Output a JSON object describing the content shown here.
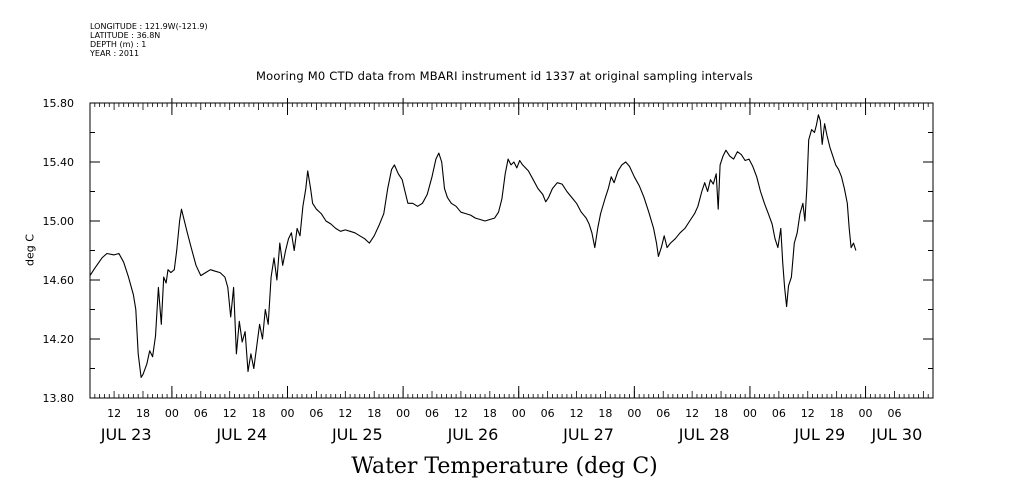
{
  "header": {
    "longitude": "LONGITUDE : 121.9W(-121.9)",
    "latitude": "LATITUDE : 36.8N",
    "depth": "DEPTH (m) : 1",
    "year": "YEAR : 2011"
  },
  "chart_data": {
    "type": "line",
    "title": "Mooring M0 CTD data from MBARI instrument id 1337 at original sampling intervals",
    "xlabel": "Water Temperature (deg C)",
    "ylabel": "deg C",
    "ylim": [
      13.8,
      15.8
    ],
    "yticks": [
      "13.80",
      "14.20",
      "14.60",
      "15.00",
      "15.40",
      "15.80"
    ],
    "xrange_hours": [
      7,
      182
    ],
    "hour_ticks": [
      {
        "h": 12,
        "label": "12"
      },
      {
        "h": 18,
        "label": "18"
      },
      {
        "h": 24,
        "label": "00"
      },
      {
        "h": 30,
        "label": "06"
      },
      {
        "h": 36,
        "label": "12"
      },
      {
        "h": 42,
        "label": "18"
      },
      {
        "h": 48,
        "label": "00"
      },
      {
        "h": 54,
        "label": "06"
      },
      {
        "h": 60,
        "label": "12"
      },
      {
        "h": 66,
        "label": "18"
      },
      {
        "h": 72,
        "label": "00"
      },
      {
        "h": 78,
        "label": "06"
      },
      {
        "h": 84,
        "label": "12"
      },
      {
        "h": 90,
        "label": "18"
      },
      {
        "h": 96,
        "label": "00"
      },
      {
        "h": 102,
        "label": "06"
      },
      {
        "h": 108,
        "label": "12"
      },
      {
        "h": 114,
        "label": "18"
      },
      {
        "h": 120,
        "label": "00"
      },
      {
        "h": 126,
        "label": "06"
      },
      {
        "h": 132,
        "label": "12"
      },
      {
        "h": 138,
        "label": "18"
      },
      {
        "h": 144,
        "label": "00"
      },
      {
        "h": 150,
        "label": "06"
      },
      {
        "h": 156,
        "label": "12"
      },
      {
        "h": 162,
        "label": "18"
      },
      {
        "h": 168,
        "label": "00"
      },
      {
        "h": 174,
        "label": "06"
      }
    ],
    "day_labels": [
      {
        "h": 14.5,
        "label": "JUL 23"
      },
      {
        "h": 38.5,
        "label": "JUL 24"
      },
      {
        "h": 62.5,
        "label": "JUL 25"
      },
      {
        "h": 86.5,
        "label": "JUL 26"
      },
      {
        "h": 110.5,
        "label": "JUL 27"
      },
      {
        "h": 134.5,
        "label": "JUL 28"
      },
      {
        "h": 158.5,
        "label": "JUL 29"
      },
      {
        "h": 174.5,
        "label": "JUL 30"
      }
    ],
    "series": [
      {
        "color": "#000000",
        "points": [
          [
            7.0,
            14.63
          ],
          [
            8.0,
            14.68
          ],
          [
            9.5,
            14.75
          ],
          [
            10.5,
            14.78
          ],
          [
            12.0,
            14.77
          ],
          [
            13.0,
            14.78
          ],
          [
            14.0,
            14.72
          ],
          [
            15.0,
            14.62
          ],
          [
            16.0,
            14.5
          ],
          [
            16.5,
            14.4
          ],
          [
            17.0,
            14.1
          ],
          [
            17.6,
            13.94
          ],
          [
            18.0,
            13.96
          ],
          [
            18.8,
            14.03
          ],
          [
            19.4,
            14.12
          ],
          [
            20.0,
            14.08
          ],
          [
            20.6,
            14.22
          ],
          [
            21.2,
            14.55
          ],
          [
            21.8,
            14.3
          ],
          [
            22.3,
            14.62
          ],
          [
            22.8,
            14.58
          ],
          [
            23.2,
            14.67
          ],
          [
            23.8,
            14.65
          ],
          [
            24.5,
            14.67
          ],
          [
            25.0,
            14.8
          ],
          [
            25.6,
            15.0
          ],
          [
            26.0,
            15.08
          ],
          [
            26.6,
            15.0
          ],
          [
            27.2,
            14.92
          ],
          [
            28.0,
            14.82
          ],
          [
            29.0,
            14.7
          ],
          [
            30.0,
            14.63
          ],
          [
            31.0,
            14.65
          ],
          [
            32.0,
            14.67
          ],
          [
            33.0,
            14.66
          ],
          [
            34.0,
            14.65
          ],
          [
            35.0,
            14.62
          ],
          [
            35.6,
            14.55
          ],
          [
            36.2,
            14.35
          ],
          [
            36.8,
            14.55
          ],
          [
            37.4,
            14.1
          ],
          [
            38.0,
            14.32
          ],
          [
            38.6,
            14.18
          ],
          [
            39.2,
            14.25
          ],
          [
            39.8,
            13.98
          ],
          [
            40.4,
            14.1
          ],
          [
            41.0,
            14.0
          ],
          [
            41.6,
            14.15
          ],
          [
            42.2,
            14.3
          ],
          [
            42.8,
            14.2
          ],
          [
            43.4,
            14.4
          ],
          [
            44.0,
            14.3
          ],
          [
            44.6,
            14.62
          ],
          [
            45.2,
            14.75
          ],
          [
            45.8,
            14.6
          ],
          [
            46.4,
            14.85
          ],
          [
            47.0,
            14.7
          ],
          [
            47.6,
            14.8
          ],
          [
            48.2,
            14.88
          ],
          [
            48.8,
            14.92
          ],
          [
            49.4,
            14.8
          ],
          [
            50.0,
            14.95
          ],
          [
            50.6,
            14.9
          ],
          [
            51.2,
            15.1
          ],
          [
            51.8,
            15.22
          ],
          [
            52.2,
            15.34
          ],
          [
            52.8,
            15.22
          ],
          [
            53.2,
            15.12
          ],
          [
            54.0,
            15.08
          ],
          [
            55.0,
            15.05
          ],
          [
            56.0,
            15.0
          ],
          [
            57.0,
            14.98
          ],
          [
            58.0,
            14.95
          ],
          [
            59.0,
            14.93
          ],
          [
            60.0,
            14.94
          ],
          [
            61.0,
            14.93
          ],
          [
            62.0,
            14.92
          ],
          [
            63.0,
            14.9
          ],
          [
            64.0,
            14.88
          ],
          [
            65.0,
            14.85
          ],
          [
            66.0,
            14.9
          ],
          [
            67.0,
            14.97
          ],
          [
            68.0,
            15.05
          ],
          [
            68.8,
            15.22
          ],
          [
            69.6,
            15.35
          ],
          [
            70.2,
            15.38
          ],
          [
            71.0,
            15.32
          ],
          [
            71.8,
            15.28
          ],
          [
            72.4,
            15.2
          ],
          [
            73.0,
            15.12
          ],
          [
            74.0,
            15.12
          ],
          [
            75.0,
            15.1
          ],
          [
            76.0,
            15.12
          ],
          [
            77.0,
            15.18
          ],
          [
            78.0,
            15.3
          ],
          [
            78.8,
            15.42
          ],
          [
            79.4,
            15.46
          ],
          [
            80.0,
            15.4
          ],
          [
            80.6,
            15.22
          ],
          [
            81.2,
            15.16
          ],
          [
            82.0,
            15.12
          ],
          [
            83.0,
            15.1
          ],
          [
            84.0,
            15.06
          ],
          [
            85.0,
            15.05
          ],
          [
            86.0,
            15.04
          ],
          [
            87.0,
            15.02
          ],
          [
            88.0,
            15.01
          ],
          [
            89.0,
            15.0
          ],
          [
            90.0,
            15.01
          ],
          [
            91.0,
            15.02
          ],
          [
            91.8,
            15.06
          ],
          [
            92.5,
            15.15
          ],
          [
            93.2,
            15.32
          ],
          [
            93.8,
            15.42
          ],
          [
            94.4,
            15.38
          ],
          [
            95.0,
            15.4
          ],
          [
            95.6,
            15.36
          ],
          [
            96.2,
            15.41
          ],
          [
            96.8,
            15.38
          ],
          [
            97.4,
            15.36
          ],
          [
            98.0,
            15.34
          ],
          [
            99.0,
            15.28
          ],
          [
            100.0,
            15.22
          ],
          [
            101.0,
            15.18
          ],
          [
            101.6,
            15.13
          ],
          [
            102.2,
            15.16
          ],
          [
            103.0,
            15.22
          ],
          [
            104.0,
            15.26
          ],
          [
            105.0,
            15.25
          ],
          [
            106.0,
            15.2
          ],
          [
            107.0,
            15.16
          ],
          [
            108.0,
            15.12
          ],
          [
            109.0,
            15.06
          ],
          [
            110.0,
            15.02
          ],
          [
            110.6,
            14.98
          ],
          [
            111.2,
            14.92
          ],
          [
            111.8,
            14.82
          ],
          [
            112.4,
            14.95
          ],
          [
            113.0,
            15.05
          ],
          [
            114.0,
            15.16
          ],
          [
            114.6,
            15.22
          ],
          [
            115.2,
            15.3
          ],
          [
            115.8,
            15.26
          ],
          [
            116.6,
            15.34
          ],
          [
            117.4,
            15.38
          ],
          [
            118.2,
            15.4
          ],
          [
            119.0,
            15.37
          ],
          [
            120.0,
            15.3
          ],
          [
            121.0,
            15.24
          ],
          [
            122.0,
            15.16
          ],
          [
            123.0,
            15.06
          ],
          [
            124.0,
            14.95
          ],
          [
            124.6,
            14.85
          ],
          [
            125.0,
            14.76
          ],
          [
            125.6,
            14.82
          ],
          [
            126.2,
            14.9
          ],
          [
            126.8,
            14.82
          ],
          [
            127.5,
            14.85
          ],
          [
            128.5,
            14.88
          ],
          [
            129.5,
            14.92
          ],
          [
            130.5,
            14.95
          ],
          [
            131.5,
            15.0
          ],
          [
            132.5,
            15.05
          ],
          [
            133.2,
            15.1
          ],
          [
            134.0,
            15.2
          ],
          [
            134.6,
            15.26
          ],
          [
            135.2,
            15.2
          ],
          [
            135.8,
            15.28
          ],
          [
            136.4,
            15.25
          ],
          [
            137.0,
            15.32
          ],
          [
            137.4,
            15.08
          ],
          [
            137.8,
            15.38
          ],
          [
            138.4,
            15.44
          ],
          [
            139.0,
            15.48
          ],
          [
            139.8,
            15.44
          ],
          [
            140.6,
            15.42
          ],
          [
            141.4,
            15.47
          ],
          [
            142.2,
            15.45
          ],
          [
            143.0,
            15.41
          ],
          [
            143.8,
            15.42
          ],
          [
            144.6,
            15.37
          ],
          [
            145.4,
            15.3
          ],
          [
            146.2,
            15.2
          ],
          [
            147.0,
            15.12
          ],
          [
            147.8,
            15.05
          ],
          [
            148.6,
            14.98
          ],
          [
            149.2,
            14.88
          ],
          [
            149.8,
            14.82
          ],
          [
            150.4,
            14.95
          ],
          [
            150.8,
            14.72
          ],
          [
            151.2,
            14.55
          ],
          [
            151.6,
            14.42
          ],
          [
            152.0,
            14.56
          ],
          [
            152.6,
            14.62
          ],
          [
            153.2,
            14.85
          ],
          [
            153.8,
            14.92
          ],
          [
            154.4,
            15.05
          ],
          [
            155.0,
            15.12
          ],
          [
            155.4,
            15.0
          ],
          [
            155.8,
            15.22
          ],
          [
            156.2,
            15.55
          ],
          [
            156.8,
            15.62
          ],
          [
            157.4,
            15.6
          ],
          [
            157.8,
            15.65
          ],
          [
            158.2,
            15.72
          ],
          [
            158.6,
            15.68
          ],
          [
            159.0,
            15.52
          ],
          [
            159.5,
            15.66
          ],
          [
            160.0,
            15.58
          ],
          [
            160.6,
            15.5
          ],
          [
            161.2,
            15.44
          ],
          [
            161.8,
            15.38
          ],
          [
            162.4,
            15.35
          ],
          [
            163.0,
            15.3
          ],
          [
            163.6,
            15.22
          ],
          [
            164.2,
            15.12
          ],
          [
            164.6,
            14.95
          ],
          [
            165.0,
            14.82
          ],
          [
            165.5,
            14.85
          ],
          [
            166.0,
            14.8
          ]
        ]
      }
    ]
  }
}
